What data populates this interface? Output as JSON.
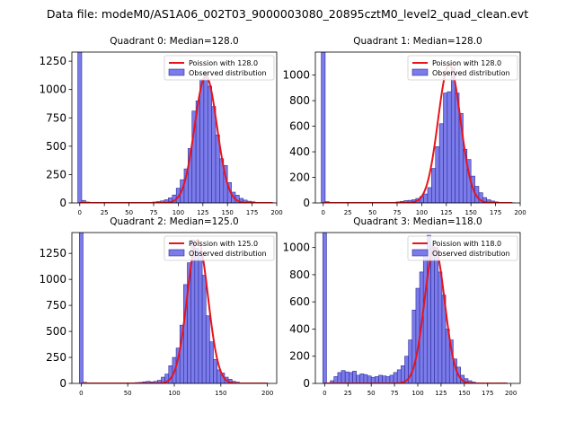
{
  "figure": {
    "suptitle": "Data file: modeM0/AS1A06_002T03_9000003080_20895cztM0_level2_quad_clean.evt"
  },
  "colors": {
    "bar_fill": "#7b7bea",
    "bar_edge": "#2c2c9c",
    "fit_line": "#e8141c"
  },
  "chart_data": [
    {
      "type": "bar",
      "title": "Quadrant 0: Median=128.0",
      "legend": [
        "Poission with 128.0",
        "Observed distribution"
      ],
      "legend_position": "top-right",
      "xlim": [
        -8,
        200
      ],
      "ylim": [
        0,
        1330
      ],
      "xticks": [
        0,
        25,
        50,
        75,
        100,
        125,
        150,
        175,
        200
      ],
      "yticks": [
        0,
        250,
        500,
        750,
        1000,
        1250
      ],
      "bin_width": 4,
      "x": [
        0,
        4,
        8,
        12,
        16,
        20,
        24,
        28,
        32,
        36,
        40,
        44,
        48,
        52,
        56,
        60,
        64,
        68,
        72,
        76,
        80,
        84,
        88,
        92,
        96,
        100,
        104,
        108,
        112,
        116,
        120,
        124,
        128,
        132,
        136,
        140,
        144,
        148,
        152,
        156,
        160,
        164,
        168,
        172,
        176,
        180,
        184,
        188,
        192,
        196
      ],
      "values": [
        1330,
        22,
        8,
        4,
        3,
        3,
        2,
        2,
        2,
        2,
        2,
        2,
        2,
        2,
        3,
        3,
        3,
        4,
        5,
        8,
        12,
        18,
        28,
        45,
        70,
        130,
        205,
        300,
        480,
        810,
        900,
        1090,
        1150,
        1030,
        850,
        600,
        390,
        330,
        180,
        95,
        68,
        40,
        25,
        15,
        10,
        5,
        3,
        2,
        1,
        1
      ],
      "fit": {
        "lambda": 128.0,
        "scale": 1120
      }
    },
    {
      "type": "bar",
      "title": "Quadrant 1: Median=128.0",
      "legend": [
        "Poission with 128.0",
        "Observed distribution"
      ],
      "legend_position": "top-right",
      "xlim": [
        -8,
        200
      ],
      "ylim": [
        0,
        1180
      ],
      "xticks": [
        0,
        25,
        50,
        75,
        100,
        125,
        150,
        175,
        200
      ],
      "yticks": [
        0,
        200,
        400,
        600,
        800,
        1000
      ],
      "bin_width": 4,
      "x": [
        0,
        4,
        8,
        12,
        16,
        20,
        24,
        28,
        32,
        36,
        40,
        44,
        48,
        52,
        56,
        60,
        64,
        68,
        72,
        76,
        80,
        84,
        88,
        92,
        96,
        100,
        104,
        108,
        112,
        116,
        120,
        124,
        128,
        132,
        136,
        140,
        144,
        148,
        152,
        156,
        160,
        164,
        168,
        172,
        176,
        180,
        184,
        188,
        192
      ],
      "values": [
        1180,
        10,
        5,
        3,
        2,
        2,
        2,
        2,
        2,
        2,
        2,
        2,
        2,
        2,
        2,
        3,
        3,
        4,
        5,
        8,
        12,
        18,
        20,
        25,
        35,
        50,
        70,
        120,
        270,
        440,
        620,
        860,
        870,
        1060,
        860,
        700,
        420,
        340,
        210,
        130,
        80,
        42,
        25,
        15,
        8,
        5,
        3,
        2,
        1
      ],
      "fit": {
        "lambda": 128.0,
        "scale": 1080
      }
    },
    {
      "type": "bar",
      "title": "Quadrant 2: Median=125.0",
      "legend": [
        "Poission with 125.0",
        "Observed distribution"
      ],
      "legend_position": "top-right",
      "xlim": [
        -10,
        210
      ],
      "ylim": [
        0,
        1450
      ],
      "xticks": [
        0,
        50,
        100,
        150,
        200
      ],
      "yticks": [
        0,
        250,
        500,
        750,
        1000,
        1250
      ],
      "bin_width": 4,
      "x": [
        0,
        4,
        8,
        12,
        16,
        20,
        24,
        28,
        32,
        36,
        40,
        44,
        48,
        52,
        56,
        60,
        64,
        68,
        72,
        76,
        80,
        84,
        88,
        92,
        96,
        100,
        104,
        108,
        112,
        116,
        120,
        124,
        128,
        132,
        136,
        140,
        144,
        148,
        152,
        156,
        160,
        164,
        168,
        172,
        176,
        180,
        184,
        188,
        192,
        196,
        200
      ],
      "values": [
        1450,
        10,
        5,
        3,
        2,
        2,
        2,
        2,
        2,
        2,
        2,
        2,
        2,
        2,
        3,
        8,
        10,
        15,
        20,
        15,
        20,
        30,
        60,
        90,
        170,
        250,
        340,
        560,
        950,
        1160,
        1380,
        1300,
        1280,
        1040,
        650,
        400,
        230,
        130,
        100,
        60,
        40,
        20,
        12,
        6,
        3,
        2,
        1,
        1,
        1,
        1,
        1
      ],
      "fit": {
        "lambda": 125.0,
        "scale": 1380
      }
    },
    {
      "type": "bar",
      "title": "Quadrant 3: Median=118.0",
      "legend": [
        "Poission with 118.0",
        "Observed distribution"
      ],
      "legend_position": "top-right",
      "xlim": [
        -10,
        210
      ],
      "ylim": [
        0,
        1110
      ],
      "xticks": [
        0,
        25,
        50,
        75,
        100,
        125,
        150,
        175,
        200
      ],
      "yticks": [
        0,
        200,
        400,
        600,
        800,
        1000
      ],
      "bin_width": 4,
      "x": [
        0,
        4,
        8,
        12,
        16,
        20,
        24,
        28,
        32,
        36,
        40,
        44,
        48,
        52,
        56,
        60,
        64,
        68,
        72,
        76,
        80,
        84,
        88,
        92,
        96,
        100,
        104,
        108,
        112,
        116,
        120,
        124,
        128,
        132,
        136,
        140,
        144,
        148,
        152,
        156,
        160,
        164,
        168,
        172,
        176,
        180,
        184,
        188,
        192,
        196
      ],
      "values": [
        1110,
        5,
        20,
        50,
        80,
        95,
        85,
        80,
        90,
        60,
        70,
        65,
        55,
        45,
        50,
        60,
        55,
        50,
        60,
        80,
        100,
        130,
        200,
        320,
        540,
        700,
        820,
        950,
        1090,
        1010,
        1000,
        820,
        650,
        400,
        320,
        180,
        120,
        60,
        35,
        20,
        10,
        5,
        3,
        2,
        1,
        1,
        1,
        1,
        1,
        1
      ],
      "fit": {
        "lambda": 118.0,
        "scale": 1000
      }
    }
  ]
}
